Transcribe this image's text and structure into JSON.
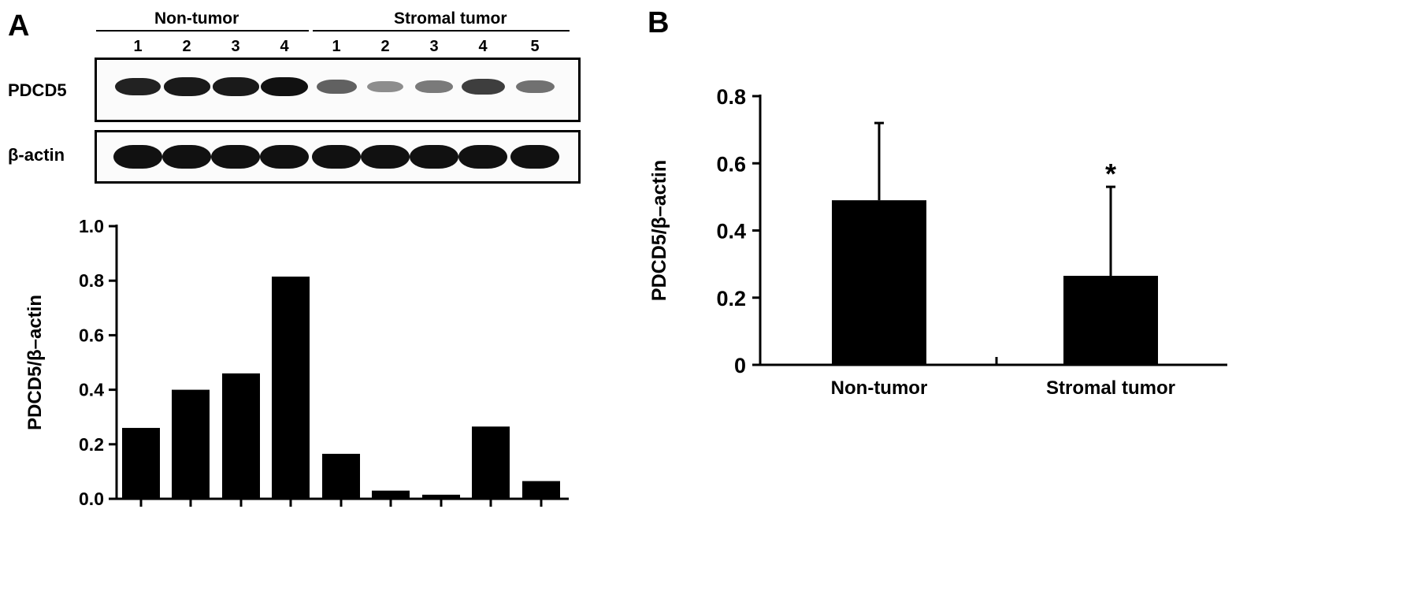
{
  "panels": {
    "a_letter": "A",
    "b_letter": "B"
  },
  "blot": {
    "groups": [
      {
        "label": "Non-tumor",
        "lanes": [
          "1",
          "2",
          "3",
          "4"
        ]
      },
      {
        "label": "Stromal tumor",
        "lanes": [
          "1",
          "2",
          "3",
          "4",
          "5"
        ]
      }
    ],
    "rows": [
      {
        "label": "PDCD5",
        "intensities": [
          0.9,
          0.95,
          0.95,
          1.0,
          0.55,
          0.3,
          0.4,
          0.75,
          0.45
        ]
      },
      {
        "label": "β-actin",
        "intensities": [
          1,
          1,
          1,
          1,
          1,
          1,
          1,
          1,
          1
        ]
      }
    ]
  },
  "chart_data": [
    {
      "type": "bar",
      "panel": "A",
      "ylabel": "PDCD5/β–actin",
      "categories": [
        "",
        "",
        "",
        "",
        "",
        "",
        "",
        "",
        ""
      ],
      "values": [
        0.26,
        0.4,
        0.46,
        0.815,
        0.165,
        0.03,
        0.015,
        0.265,
        0.065
      ],
      "ylim": [
        0,
        1.0
      ],
      "yticks": [
        "0.0",
        "0.2",
        "0.4",
        "0.6",
        "0.8",
        "1.0"
      ],
      "ytick_values": [
        0,
        0.2,
        0.4,
        0.6,
        0.8,
        1.0
      ],
      "bar_color": "#000000",
      "grid": false
    },
    {
      "type": "bar",
      "panel": "B",
      "ylabel": "PDCD5/β–actin",
      "categories": [
        "Non-tumor",
        "Stromal tumor"
      ],
      "values": [
        0.49,
        0.265
      ],
      "error_upper": [
        0.72,
        0.53
      ],
      "annotations": [
        "",
        "*"
      ],
      "ylim": [
        0,
        0.8
      ],
      "yticks": [
        "0",
        "0.2",
        "0.4",
        "0.6",
        "0.8"
      ],
      "ytick_values": [
        0,
        0.2,
        0.4,
        0.6,
        0.8
      ],
      "bar_color": "#000000",
      "grid": false
    }
  ]
}
